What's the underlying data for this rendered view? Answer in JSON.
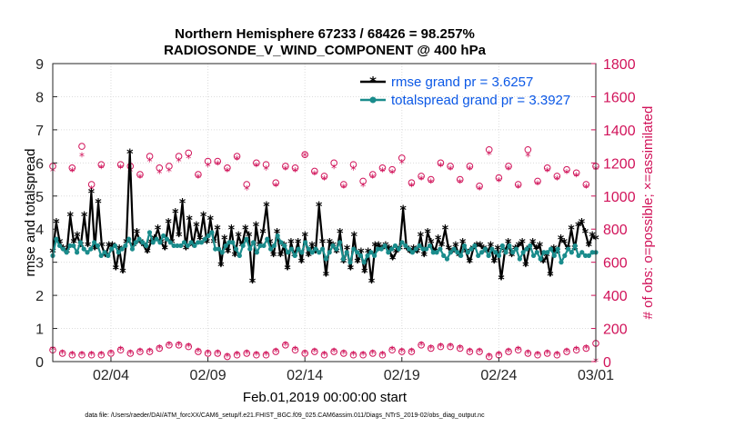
{
  "chart_data": {
    "type": "line",
    "title_line1": "Northern Hemisphere 67233 / 68426 = 98.257%",
    "title_line2": "RADIOSONDE_V_WIND_COMPONENT @ 400 hPa",
    "xlabel": "Feb.01,2019 00:00:00 start",
    "ylabel_left": "rmse and totalspread",
    "ylabel_right": "# of obs: o=possible; ×=assimilated",
    "footnote": "data file: /Users/raeder/DAI/ATM_forcXX/CAM6_setup/f.e21.FHIST_BGC.f09_025.CAM6assim.011/Diags_NTrS_2019-02/obs_diag_output.nc",
    "xlim": [
      0,
      28
    ],
    "x_ticks": [
      {
        "value": 3,
        "label": "02/04"
      },
      {
        "value": 8,
        "label": "02/09"
      },
      {
        "value": 13,
        "label": "02/14"
      },
      {
        "value": 18,
        "label": "02/19"
      },
      {
        "value": 23,
        "label": "02/24"
      },
      {
        "value": 28,
        "label": "03/01"
      }
    ],
    "ylim_left": [
      0,
      9
    ],
    "y_ticks_left": [
      "0",
      "1",
      "2",
      "3",
      "4",
      "5",
      "6",
      "7",
      "8",
      "9"
    ],
    "ylim_right": [
      0,
      1800
    ],
    "y_ticks_right": [
      "0",
      "200",
      "400",
      "600",
      "800",
      "1000",
      "1200",
      "1400",
      "1600",
      "1800"
    ],
    "legend": [
      "rmse grand pr = 3.6257",
      "totalspread grand pr = 3.3927"
    ],
    "colors": {
      "rmse": "#000000",
      "spread": "#1a8c8c",
      "obs": "#d1135a",
      "legend_text": "#0b58e6"
    },
    "series": [
      {
        "name": "rmse",
        "values": [
          3.3,
          4.2,
          3.6,
          3.4,
          3.3,
          4.4,
          3.6,
          3.8,
          3.5,
          4.4,
          3.5,
          5.1,
          3.4,
          4.8,
          3.5,
          3.2,
          3.5,
          3.5,
          2.8,
          3.4,
          2.7,
          3.6,
          6.3,
          3.5,
          3.9,
          3.6,
          3.5,
          3.3,
          3.6,
          3.7,
          4.0,
          3.6,
          3.4,
          4.2,
          3.6,
          4.5,
          3.8,
          4.8,
          3.4,
          4.3,
          3.5,
          4.1,
          3.7,
          4.4,
          3.6,
          4.3,
          3.6,
          4.0,
          2.9,
          3.7,
          3.3,
          4.0,
          3.2,
          3.8,
          3.5,
          4.0,
          3.8,
          2.4,
          4.1,
          3.5,
          3.9,
          4.7,
          3.6,
          3.2,
          3.9,
          3.2,
          3.5,
          2.8,
          3.6,
          3.2,
          3.6,
          3.0,
          3.8,
          3.2,
          3.5,
          3.3,
          4.7,
          3.6,
          2.6,
          3.6,
          3.5,
          3.3,
          3.9,
          3.0,
          3.4,
          2.8,
          3.8,
          3.0,
          3.3,
          2.7,
          3.3,
          2.4,
          3.5,
          3.5,
          3.4,
          3.5,
          3.4,
          3.1,
          3.3,
          3.4,
          4.6,
          3.4,
          3.3,
          3.4,
          3.3,
          3.8,
          3.2,
          3.9,
          3.6,
          3.3,
          3.7,
          3.5,
          4.0,
          3.4,
          3.3,
          3.5,
          3.2,
          3.6,
          3.3,
          3.0,
          3.4,
          3.5,
          3.5,
          3.4,
          3.3,
          3.5,
          3.0,
          3.4,
          2.5,
          3.3,
          3.6,
          3.2,
          3.4,
          3.5,
          3.6,
          2.9,
          3.4,
          3.6,
          3.4,
          3.5,
          3.0,
          3.2,
          2.6,
          3.4,
          3.3,
          3.7,
          3.6,
          3.4,
          4.0,
          3.4,
          4.1,
          4.2,
          3.9,
          3.5,
          3.8,
          3.7
        ]
      },
      {
        "name": "totalspread",
        "values": [
          3.2,
          3.7,
          3.5,
          3.4,
          3.3,
          3.5,
          3.5,
          3.3,
          3.6,
          3.4,
          3.3,
          3.4,
          3.6,
          3.5,
          3.2,
          3.3,
          3.2,
          3.4,
          3.5,
          3.3,
          3.4,
          3.5,
          3.7,
          3.4,
          3.6,
          3.7,
          3.6,
          3.5,
          3.9,
          3.6,
          3.7,
          3.6,
          3.8,
          3.7,
          3.6,
          3.5,
          3.5,
          3.5,
          3.6,
          3.5,
          3.6,
          3.5,
          3.6,
          3.6,
          3.7,
          3.8,
          3.9,
          3.4,
          3.4,
          3.3,
          3.5,
          3.6,
          3.6,
          3.4,
          3.2,
          3.5,
          3.7,
          3.4,
          3.6,
          3.3,
          3.5,
          3.5,
          3.7,
          3.4,
          3.5,
          3.8,
          3.6,
          3.5,
          3.3,
          3.4,
          3.2,
          3.4,
          3.3,
          3.6,
          3.4,
          3.3,
          3.4,
          3.3,
          3.4,
          3.1,
          3.3,
          3.5,
          3.4,
          3.6,
          3.1,
          3.3,
          3.0,
          3.4,
          3.3,
          3.2,
          3.0,
          3.2,
          3.3,
          3.2,
          3.4,
          3.4,
          3.5,
          3.3,
          3.4,
          3.5,
          3.4,
          3.6,
          3.5,
          3.4,
          3.3,
          3.4,
          3.5,
          3.4,
          3.4,
          3.5,
          3.3,
          3.3,
          3.4,
          3.2,
          3.1,
          3.3,
          3.4,
          3.3,
          3.2,
          3.5,
          3.3,
          3.4,
          3.5,
          3.2,
          3.3,
          3.4,
          3.2,
          3.4,
          3.3,
          3.2,
          3.5,
          3.3,
          3.5,
          3.3,
          3.4,
          3.1,
          3.3,
          3.4,
          3.5,
          3.2,
          3.3,
          3.1,
          3.3,
          3.3,
          3.4,
          3.2,
          3.4,
          3.0,
          3.2,
          3.4,
          3.3,
          3.5,
          3.2,
          3.3,
          3.2,
          3.2,
          3.3,
          3.3
        ]
      },
      {
        "name": "obs_possible",
        "upper": [
          [
            0.0,
            1180
          ],
          [
            1.0,
            1170
          ],
          [
            1.5,
            1300
          ],
          [
            2.0,
            1070
          ],
          [
            2.5,
            1190
          ],
          [
            3.5,
            1190
          ],
          [
            4.0,
            1180
          ],
          [
            4.5,
            1130
          ],
          [
            5.0,
            1240
          ],
          [
            5.5,
            1170
          ],
          [
            6.0,
            1180
          ],
          [
            6.5,
            1240
          ],
          [
            7.0,
            1260
          ],
          [
            7.5,
            1130
          ],
          [
            8.0,
            1210
          ],
          [
            8.5,
            1210
          ],
          [
            9.0,
            1170
          ],
          [
            9.5,
            1240
          ],
          [
            10.0,
            1070
          ],
          [
            10.5,
            1200
          ],
          [
            11.0,
            1190
          ],
          [
            11.5,
            1080
          ],
          [
            12.0,
            1180
          ],
          [
            12.5,
            1170
          ],
          [
            13.0,
            1250
          ],
          [
            13.5,
            1150
          ],
          [
            14.0,
            1120
          ],
          [
            14.5,
            1200
          ],
          [
            15.0,
            1070
          ],
          [
            15.5,
            1190
          ],
          [
            16.0,
            1090
          ],
          [
            16.5,
            1130
          ],
          [
            17.0,
            1170
          ],
          [
            17.5,
            1160
          ],
          [
            18.0,
            1230
          ],
          [
            18.5,
            1080
          ],
          [
            19.0,
            1120
          ],
          [
            19.5,
            1100
          ],
          [
            20.0,
            1200
          ],
          [
            20.5,
            1180
          ],
          [
            21.0,
            1100
          ],
          [
            21.5,
            1180
          ],
          [
            22.0,
            1060
          ],
          [
            22.5,
            1280
          ],
          [
            23.0,
            1110
          ],
          [
            23.5,
            1180
          ],
          [
            24.0,
            1070
          ],
          [
            24.5,
            1280
          ],
          [
            25.0,
            1090
          ],
          [
            25.5,
            1170
          ],
          [
            26.0,
            1120
          ],
          [
            26.5,
            1160
          ],
          [
            27.0,
            1140
          ],
          [
            27.5,
            1070
          ],
          [
            28.0,
            1180
          ]
        ],
        "lower": [
          [
            0.0,
            70
          ],
          [
            0.5,
            50
          ],
          [
            1.0,
            40
          ],
          [
            1.5,
            40
          ],
          [
            2.0,
            40
          ],
          [
            2.5,
            40
          ],
          [
            3.0,
            50
          ],
          [
            3.5,
            70
          ],
          [
            4.0,
            50
          ],
          [
            4.5,
            60
          ],
          [
            5.0,
            60
          ],
          [
            5.5,
            80
          ],
          [
            6.0,
            100
          ],
          [
            6.5,
            100
          ],
          [
            7.0,
            90
          ],
          [
            7.5,
            60
          ],
          [
            8.0,
            50
          ],
          [
            8.5,
            50
          ],
          [
            9.0,
            30
          ],
          [
            9.5,
            40
          ],
          [
            10.0,
            50
          ],
          [
            10.5,
            40
          ],
          [
            11.0,
            40
          ],
          [
            11.5,
            60
          ],
          [
            12.0,
            100
          ],
          [
            12.5,
            70
          ],
          [
            13.0,
            50
          ],
          [
            13.5,
            60
          ],
          [
            14.0,
            40
          ],
          [
            14.5,
            60
          ],
          [
            15.0,
            50
          ],
          [
            15.5,
            40
          ],
          [
            16.0,
            40
          ],
          [
            16.5,
            50
          ],
          [
            17.0,
            40
          ],
          [
            17.5,
            70
          ],
          [
            18.0,
            60
          ],
          [
            18.5,
            60
          ],
          [
            19.0,
            100
          ],
          [
            19.5,
            80
          ],
          [
            20.0,
            90
          ],
          [
            20.5,
            90
          ],
          [
            21.0,
            80
          ],
          [
            21.5,
            60
          ],
          [
            22.0,
            60
          ],
          [
            22.5,
            30
          ],
          [
            23.0,
            40
          ],
          [
            23.5,
            60
          ],
          [
            24.0,
            70
          ],
          [
            24.5,
            50
          ],
          [
            25.0,
            40
          ],
          [
            25.5,
            50
          ],
          [
            26.0,
            40
          ],
          [
            26.5,
            60
          ],
          [
            27.0,
            70
          ],
          [
            27.5,
            80
          ],
          [
            28.0,
            110
          ]
        ]
      },
      {
        "name": "obs_assimilated",
        "upper": [
          [
            0.0,
            1150
          ],
          [
            1.0,
            1150
          ],
          [
            1.5,
            1240
          ],
          [
            2.0,
            1040
          ],
          [
            2.5,
            1170
          ],
          [
            3.5,
            1170
          ],
          [
            4.0,
            1150
          ],
          [
            4.5,
            1110
          ],
          [
            5.0,
            1210
          ],
          [
            5.5,
            1140
          ],
          [
            6.0,
            1150
          ],
          [
            6.5,
            1210
          ],
          [
            7.0,
            1230
          ],
          [
            7.5,
            1110
          ],
          [
            8.0,
            1180
          ],
          [
            8.5,
            1190
          ],
          [
            9.0,
            1150
          ],
          [
            9.5,
            1220
          ],
          [
            10.0,
            1040
          ],
          [
            10.5,
            1180
          ],
          [
            11.0,
            1160
          ],
          [
            11.5,
            1060
          ],
          [
            12.0,
            1160
          ],
          [
            12.5,
            1150
          ],
          [
            13.0,
            1240
          ],
          [
            13.5,
            1130
          ],
          [
            14.0,
            1100
          ],
          [
            14.5,
            1170
          ],
          [
            15.0,
            1050
          ],
          [
            15.5,
            1160
          ],
          [
            16.0,
            1060
          ],
          [
            16.5,
            1110
          ],
          [
            17.0,
            1150
          ],
          [
            17.5,
            1140
          ],
          [
            18.0,
            1200
          ],
          [
            18.5,
            1060
          ],
          [
            19.0,
            1100
          ],
          [
            19.5,
            1080
          ],
          [
            20.0,
            1180
          ],
          [
            20.5,
            1160
          ],
          [
            21.0,
            1080
          ],
          [
            21.5,
            1160
          ],
          [
            22.0,
            1040
          ],
          [
            22.5,
            1250
          ],
          [
            23.0,
            1090
          ],
          [
            23.5,
            1160
          ],
          [
            24.0,
            1050
          ],
          [
            24.5,
            1240
          ],
          [
            25.0,
            1070
          ],
          [
            25.5,
            1150
          ],
          [
            26.0,
            1100
          ],
          [
            26.5,
            1140
          ],
          [
            27.0,
            1120
          ],
          [
            27.5,
            1050
          ],
          [
            28.0,
            1160
          ]
        ],
        "lower": [
          [
            0.0,
            70
          ],
          [
            0.5,
            50
          ],
          [
            1.0,
            40
          ],
          [
            1.5,
            40
          ],
          [
            2.0,
            40
          ],
          [
            2.5,
            40
          ],
          [
            3.0,
            50
          ],
          [
            3.5,
            70
          ],
          [
            4.0,
            50
          ],
          [
            4.5,
            60
          ],
          [
            5.0,
            60
          ],
          [
            5.5,
            80
          ],
          [
            6.0,
            100
          ],
          [
            6.5,
            100
          ],
          [
            7.0,
            90
          ],
          [
            7.5,
            60
          ],
          [
            8.0,
            50
          ],
          [
            8.5,
            50
          ],
          [
            9.0,
            30
          ],
          [
            9.5,
            40
          ],
          [
            10.0,
            50
          ],
          [
            10.5,
            40
          ],
          [
            11.0,
            40
          ],
          [
            11.5,
            60
          ],
          [
            12.0,
            100
          ],
          [
            12.5,
            70
          ],
          [
            13.0,
            50
          ],
          [
            13.5,
            60
          ],
          [
            14.0,
            40
          ],
          [
            14.5,
            60
          ],
          [
            15.0,
            50
          ],
          [
            15.5,
            40
          ],
          [
            16.0,
            40
          ],
          [
            16.5,
            50
          ],
          [
            17.0,
            40
          ],
          [
            17.5,
            70
          ],
          [
            18.0,
            60
          ],
          [
            18.5,
            60
          ],
          [
            19.0,
            100
          ],
          [
            19.5,
            80
          ],
          [
            20.0,
            90
          ],
          [
            20.5,
            90
          ],
          [
            21.0,
            80
          ],
          [
            21.5,
            60
          ],
          [
            22.0,
            60
          ],
          [
            22.5,
            30
          ],
          [
            23.0,
            40
          ],
          [
            23.5,
            60
          ],
          [
            24.0,
            70
          ],
          [
            24.5,
            50
          ],
          [
            25.0,
            40
          ],
          [
            25.5,
            50
          ],
          [
            26.0,
            40
          ],
          [
            26.5,
            60
          ],
          [
            27.0,
            70
          ],
          [
            27.5,
            80
          ],
          [
            28.0,
            0
          ]
        ]
      }
    ]
  }
}
